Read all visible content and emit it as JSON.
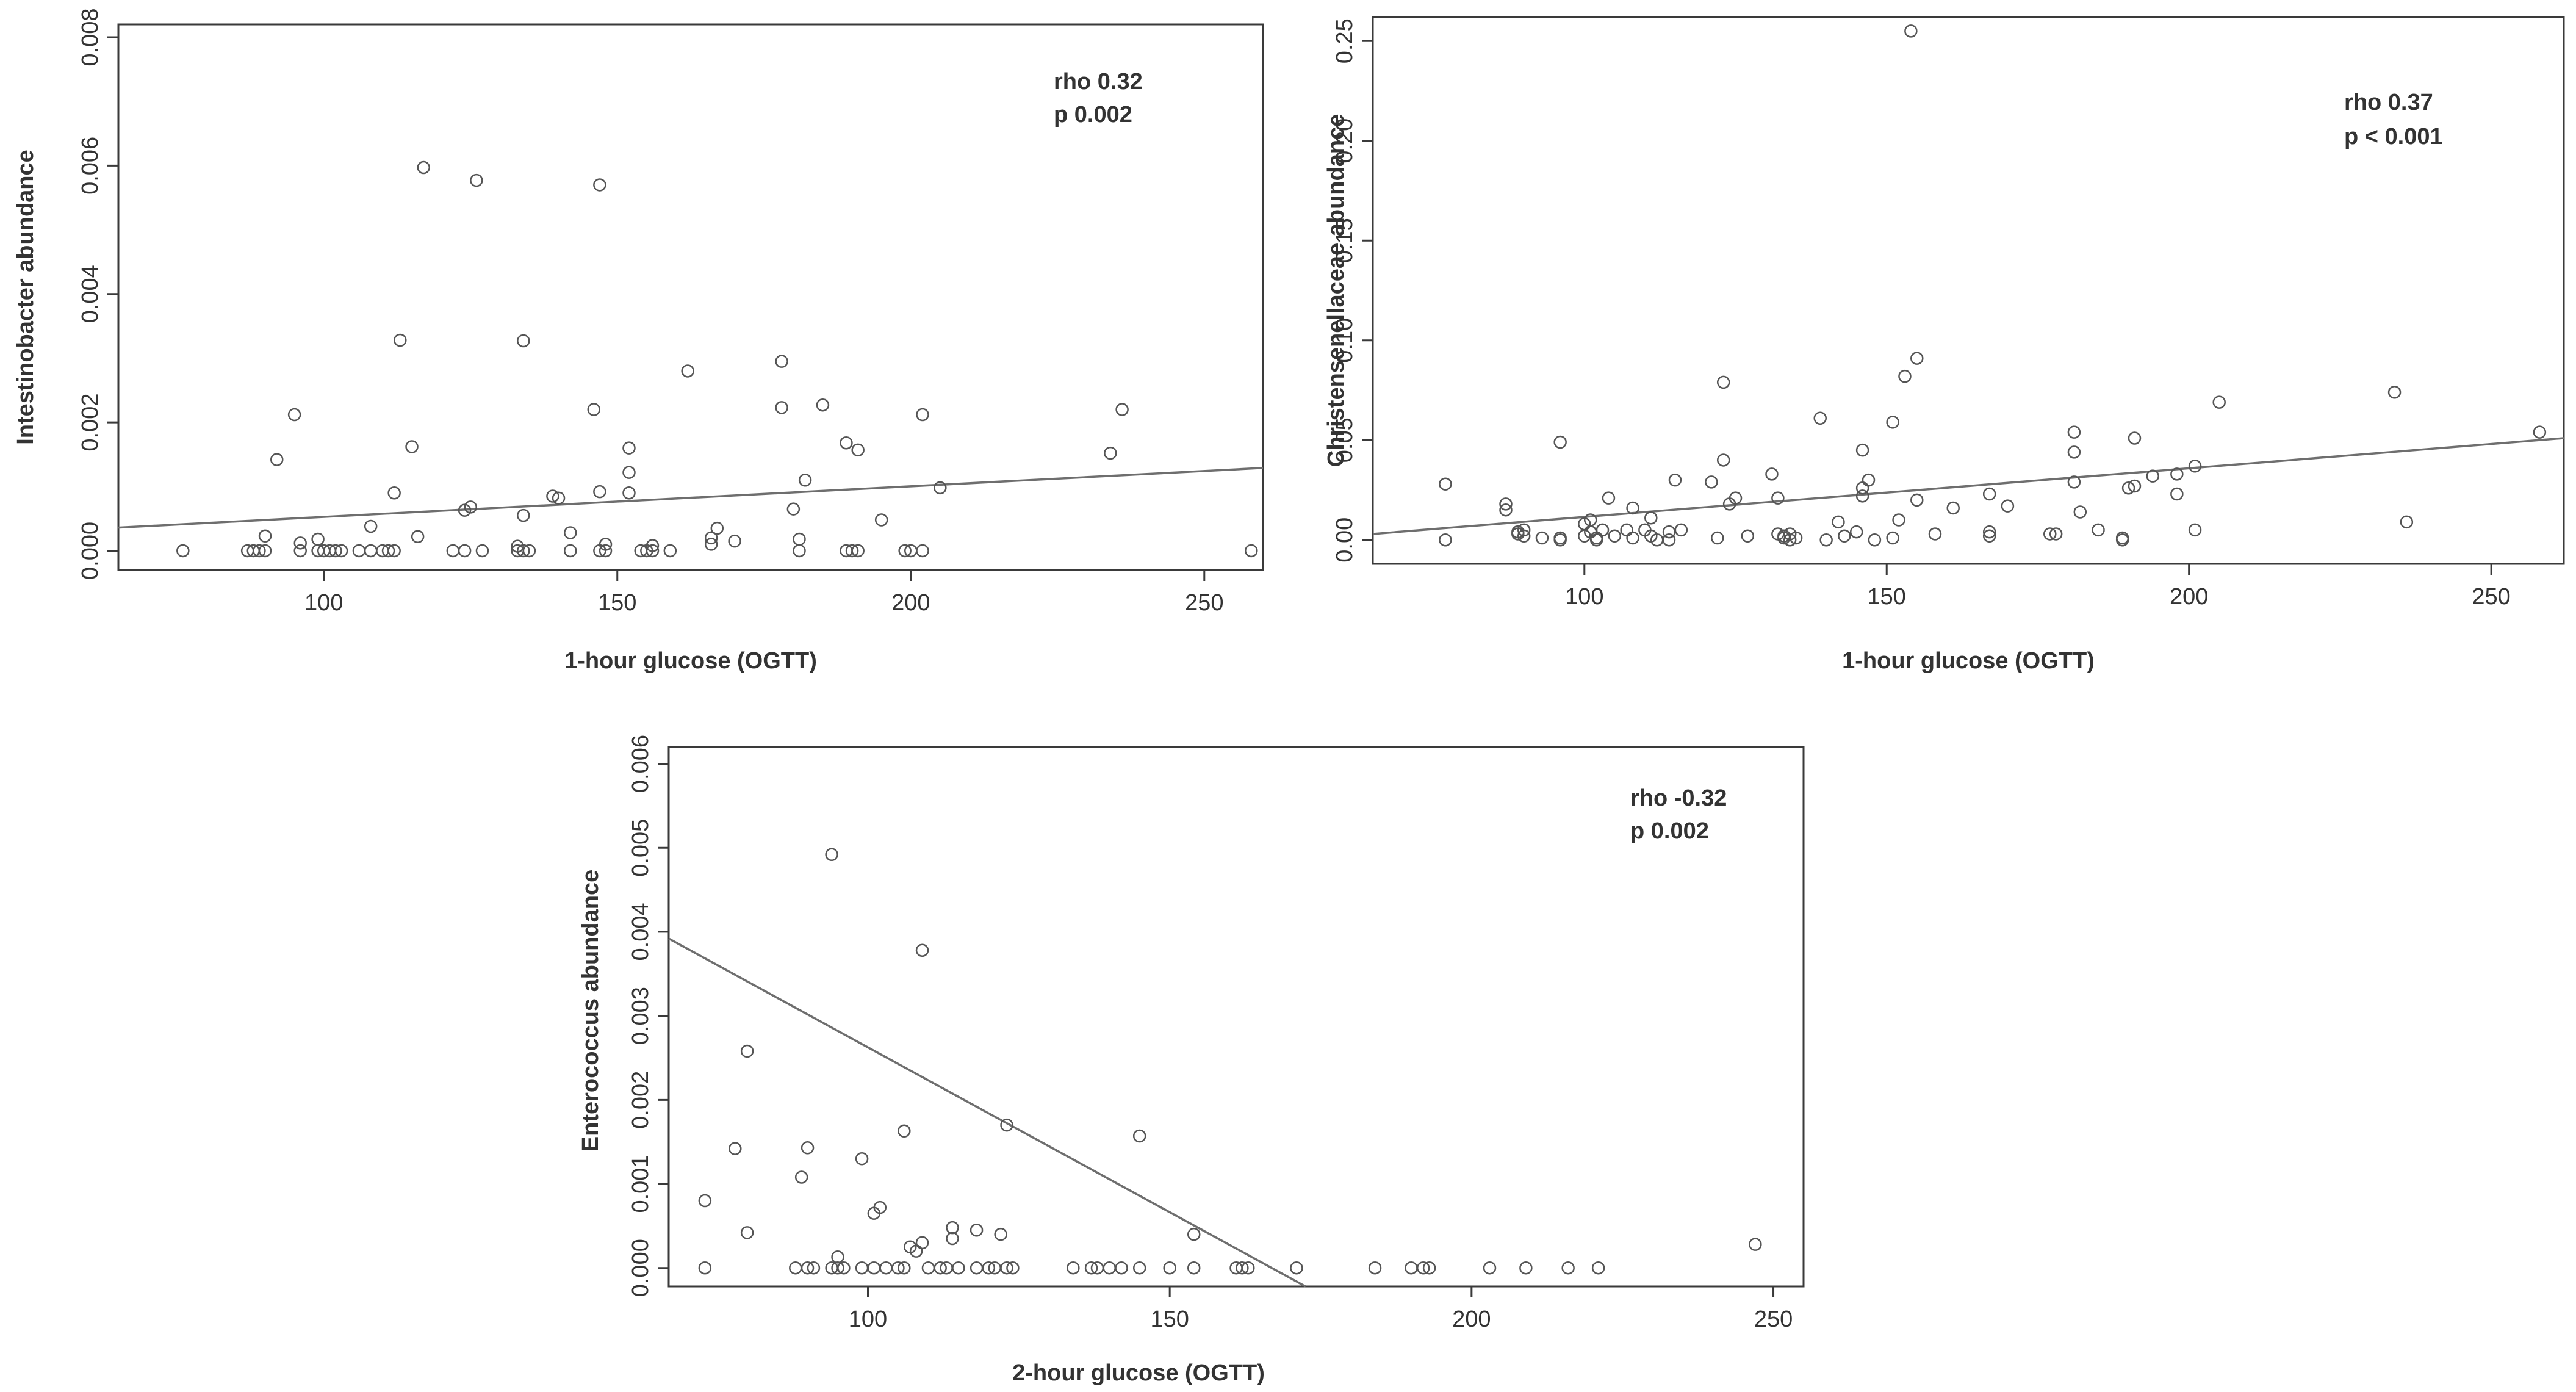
{
  "chart_data": [
    {
      "type": "scatter",
      "id": "intestinobacter",
      "xlabel": "1-hour glucose (OGTT)",
      "ylabel": "Intestinobacter abundance",
      "annotation": [
        "rho 0.32",
        "p 0.002"
      ],
      "xlim": [
        65,
        260
      ],
      "ylim": [
        -0.0003,
        0.0082
      ],
      "xticks": [
        100,
        150,
        200,
        250
      ],
      "yticks": [
        0.0,
        0.002,
        0.004,
        0.006,
        0.008
      ],
      "xtick_labels": [
        "100",
        "150",
        "200",
        "250"
      ],
      "ytick_labels": [
        "0.000",
        "0.002",
        "0.004",
        "0.006",
        "0.008"
      ],
      "fit_line": {
        "x": [
          65,
          260
        ],
        "y": [
          0.00036,
          0.00129
        ]
      },
      "points": [
        [
          76,
          0
        ],
        [
          87,
          0
        ],
        [
          88,
          0
        ],
        [
          89,
          0
        ],
        [
          90,
          0.00023
        ],
        [
          90,
          0
        ],
        [
          92,
          0.00142
        ],
        [
          95,
          0.00212
        ],
        [
          96,
          0.00012
        ],
        [
          96,
          0
        ],
        [
          99,
          0
        ],
        [
          99,
          0.00018
        ],
        [
          100,
          0
        ],
        [
          101,
          0
        ],
        [
          102,
          0
        ],
        [
          103,
          0
        ],
        [
          106,
          0
        ],
        [
          108,
          0.00038
        ],
        [
          108,
          0
        ],
        [
          110,
          0
        ],
        [
          111,
          0
        ],
        [
          112,
          0
        ],
        [
          112,
          0.0009
        ],
        [
          113,
          0.00328
        ],
        [
          115,
          0.00162
        ],
        [
          116,
          0.00022
        ],
        [
          117,
          0.00597
        ],
        [
          122,
          0
        ],
        [
          124,
          0.00063
        ],
        [
          124,
          0
        ],
        [
          125,
          0.00068
        ],
        [
          126,
          0.00577
        ],
        [
          127,
          0
        ],
        [
          133,
          7e-05
        ],
        [
          133,
          0
        ],
        [
          134,
          0
        ],
        [
          134,
          0.00055
        ],
        [
          134,
          0.00327
        ],
        [
          135,
          0
        ],
        [
          139,
          0.00085
        ],
        [
          140,
          0.00082
        ],
        [
          142,
          0.00028
        ],
        [
          142,
          0
        ],
        [
          146,
          0.0022
        ],
        [
          147,
          0.0057
        ],
        [
          147,
          0.00092
        ],
        [
          148,
          0.0001
        ],
        [
          147,
          0
        ],
        [
          148,
          0
        ],
        [
          152,
          0.0009
        ],
        [
          152,
          0.0016
        ],
        [
          152,
          0.00122
        ],
        [
          154,
          0
        ],
        [
          155,
          0
        ],
        [
          156,
          8e-05
        ],
        [
          156,
          0
        ],
        [
          159,
          0
        ],
        [
          162,
          0.0028
        ],
        [
          166,
          0.0001
        ],
        [
          166,
          0.0002
        ],
        [
          167,
          0.00035
        ],
        [
          170,
          0.00015
        ],
        [
          178,
          0.00295
        ],
        [
          178,
          0.00223
        ],
        [
          180,
          0.00065
        ],
        [
          181,
          0.00018
        ],
        [
          181,
          0
        ],
        [
          182,
          0.0011
        ],
        [
          185,
          0.00227
        ],
        [
          189,
          0.00168
        ],
        [
          189,
          0
        ],
        [
          190,
          0
        ],
        [
          191,
          0.00157
        ],
        [
          191,
          0
        ],
        [
          195,
          0.00048
        ],
        [
          199,
          0
        ],
        [
          200,
          0
        ],
        [
          202,
          0.00212
        ],
        [
          202,
          0
        ],
        [
          205,
          0.00098
        ],
        [
          234,
          0.00152
        ],
        [
          236,
          0.0022
        ],
        [
          258,
          0
        ]
      ]
    },
    {
      "type": "scatter",
      "id": "christensenellaceae",
      "xlabel": "1-hour glucose (OGTT)",
      "ylabel": "Christensenellaceae abundance",
      "annotation": [
        "rho 0.37",
        "p < 0.001"
      ],
      "xlim": [
        65,
        262
      ],
      "ylim": [
        -0.012,
        0.262
      ],
      "xticks": [
        100,
        150,
        200,
        250
      ],
      "yticks": [
        0.0,
        0.05,
        0.1,
        0.15,
        0.2,
        0.25
      ],
      "xtick_labels": [
        "100",
        "150",
        "200",
        "250"
      ],
      "ytick_labels": [
        "0.00",
        "0.05",
        "0.10",
        "0.15",
        "0.20",
        "0.25"
      ],
      "fit_line": {
        "x": [
          65,
          262
        ],
        "y": [
          0.003,
          0.051
        ]
      },
      "points": [
        [
          77,
          0.028
        ],
        [
          77,
          0
        ],
        [
          87,
          0.018
        ],
        [
          87,
          0.015
        ],
        [
          89,
          0.004
        ],
        [
          89,
          0.003
        ],
        [
          90,
          0.002
        ],
        [
          90,
          0.005
        ],
        [
          93,
          0.001
        ],
        [
          96,
          0.049
        ],
        [
          96,
          0
        ],
        [
          96,
          0.001
        ],
        [
          100,
          0.008
        ],
        [
          100,
          0.002
        ],
        [
          101,
          0.01
        ],
        [
          101,
          0.004
        ],
        [
          102,
          0.001
        ],
        [
          102,
          0
        ],
        [
          103,
          0.005
        ],
        [
          104,
          0.021
        ],
        [
          105,
          0.002
        ],
        [
          107,
          0.005
        ],
        [
          108,
          0.001
        ],
        [
          108,
          0.016
        ],
        [
          110,
          0.005
        ],
        [
          111,
          0.011
        ],
        [
          111,
          0.002
        ],
        [
          112,
          0
        ],
        [
          114,
          0.004
        ],
        [
          114,
          0
        ],
        [
          115,
          0.03
        ],
        [
          116,
          0.005
        ],
        [
          121,
          0.029
        ],
        [
          122,
          0.001
        ],
        [
          123,
          0.04
        ],
        [
          123,
          0.079
        ],
        [
          124,
          0.018
        ],
        [
          125,
          0.021
        ],
        [
          127,
          0.002
        ],
        [
          131,
          0.033
        ],
        [
          132,
          0.003
        ],
        [
          132,
          0.021
        ],
        [
          133,
          0.002
        ],
        [
          133,
          0.001
        ],
        [
          134,
          0
        ],
        [
          134,
          0.003
        ],
        [
          135,
          0.001
        ],
        [
          139,
          0.061
        ],
        [
          140,
          0
        ],
        [
          142,
          0.009
        ],
        [
          143,
          0.002
        ],
        [
          145,
          0.004
        ],
        [
          146,
          0.045
        ],
        [
          146,
          0.022
        ],
        [
          146,
          0.026
        ],
        [
          147,
          0.03
        ],
        [
          148,
          0
        ],
        [
          151,
          0.059
        ],
        [
          151,
          0.001
        ],
        [
          152,
          0.01
        ],
        [
          153,
          0.082
        ],
        [
          154,
          0.255
        ],
        [
          155,
          0.091
        ],
        [
          155,
          0.02
        ],
        [
          158,
          0.003
        ],
        [
          161,
          0.016
        ],
        [
          167,
          0.023
        ],
        [
          167,
          0.004
        ],
        [
          167,
          0.002
        ],
        [
          170,
          0.017
        ],
        [
          177,
          0.003
        ],
        [
          178,
          0.003
        ],
        [
          181,
          0.054
        ],
        [
          181,
          0.044
        ],
        [
          181,
          0.029
        ],
        [
          182,
          0.014
        ],
        [
          185,
          0.005
        ],
        [
          189,
          0
        ],
        [
          189,
          0.001
        ],
        [
          190,
          0.026
        ],
        [
          191,
          0.051
        ],
        [
          191,
          0.027
        ],
        [
          194,
          0.032
        ],
        [
          198,
          0.033
        ],
        [
          198,
          0.023
        ],
        [
          201,
          0.037
        ],
        [
          201,
          0.005
        ],
        [
          205,
          0.069
        ],
        [
          234,
          0.074
        ],
        [
          236,
          0.009
        ],
        [
          258,
          0.054
        ]
      ]
    },
    {
      "type": "scatter",
      "id": "enterococcus",
      "xlabel": "2-hour glucose (OGTT)",
      "ylabel": "Enterococcus abundance",
      "annotation": [
        "rho -0.32",
        "p 0.002"
      ],
      "xlim": [
        67,
        255
      ],
      "ylim": [
        -0.00022,
        0.0062
      ],
      "xticks": [
        100,
        150,
        200,
        250
      ],
      "yticks": [
        0.0,
        0.001,
        0.002,
        0.003,
        0.004,
        0.005,
        0.006
      ],
      "xtick_labels": [
        "100",
        "150",
        "200",
        "250"
      ],
      "ytick_labels": [
        "0.000",
        "0.001",
        "0.002",
        "0.003",
        "0.004",
        "0.005",
        "0.006"
      ],
      "fit_line": {
        "x": [
          67,
          172.5
        ],
        "y": [
          0.00392,
          -0.00022
        ]
      },
      "points": [
        [
          73,
          0.0008
        ],
        [
          73,
          0
        ],
        [
          78,
          0.00142
        ],
        [
          80,
          0.00258
        ],
        [
          80,
          0.00042
        ],
        [
          88,
          0
        ],
        [
          89,
          0.00108
        ],
        [
          90,
          0
        ],
        [
          90,
          0.00143
        ],
        [
          91,
          0
        ],
        [
          94,
          0.00492
        ],
        [
          94,
          0
        ],
        [
          95,
          0
        ],
        [
          95,
          0.00013
        ],
        [
          96,
          0
        ],
        [
          99,
          0.0013
        ],
        [
          99,
          0
        ],
        [
          101,
          0.00065
        ],
        [
          101,
          0
        ],
        [
          102,
          0.00072
        ],
        [
          103,
          0
        ],
        [
          105,
          0
        ],
        [
          106,
          0.00163
        ],
        [
          106,
          0
        ],
        [
          107,
          0.00025
        ],
        [
          108,
          0.0002
        ],
        [
          109,
          0.00378
        ],
        [
          109,
          0.0003
        ],
        [
          110,
          0
        ],
        [
          112,
          0
        ],
        [
          113,
          0
        ],
        [
          114,
          0.00048
        ],
        [
          114,
          0.00035
        ],
        [
          115,
          0
        ],
        [
          118,
          0.00045
        ],
        [
          118,
          0
        ],
        [
          120,
          0
        ],
        [
          121,
          0
        ],
        [
          122,
          0.0004
        ],
        [
          123,
          0.0017
        ],
        [
          123,
          0
        ],
        [
          124,
          0
        ],
        [
          134,
          0
        ],
        [
          137,
          0
        ],
        [
          138,
          0
        ],
        [
          140,
          0
        ],
        [
          142,
          0
        ],
        [
          145,
          0.00157
        ],
        [
          145,
          0
        ],
        [
          150,
          0
        ],
        [
          154,
          0.0004
        ],
        [
          154,
          0
        ],
        [
          161,
          0
        ],
        [
          162,
          0
        ],
        [
          163,
          0
        ],
        [
          171,
          0
        ],
        [
          184,
          0
        ],
        [
          190,
          0
        ],
        [
          192,
          0
        ],
        [
          193,
          0
        ],
        [
          203,
          0
        ],
        [
          209,
          0
        ],
        [
          216,
          0
        ],
        [
          221,
          0
        ],
        [
          247,
          0.00028
        ]
      ]
    }
  ]
}
